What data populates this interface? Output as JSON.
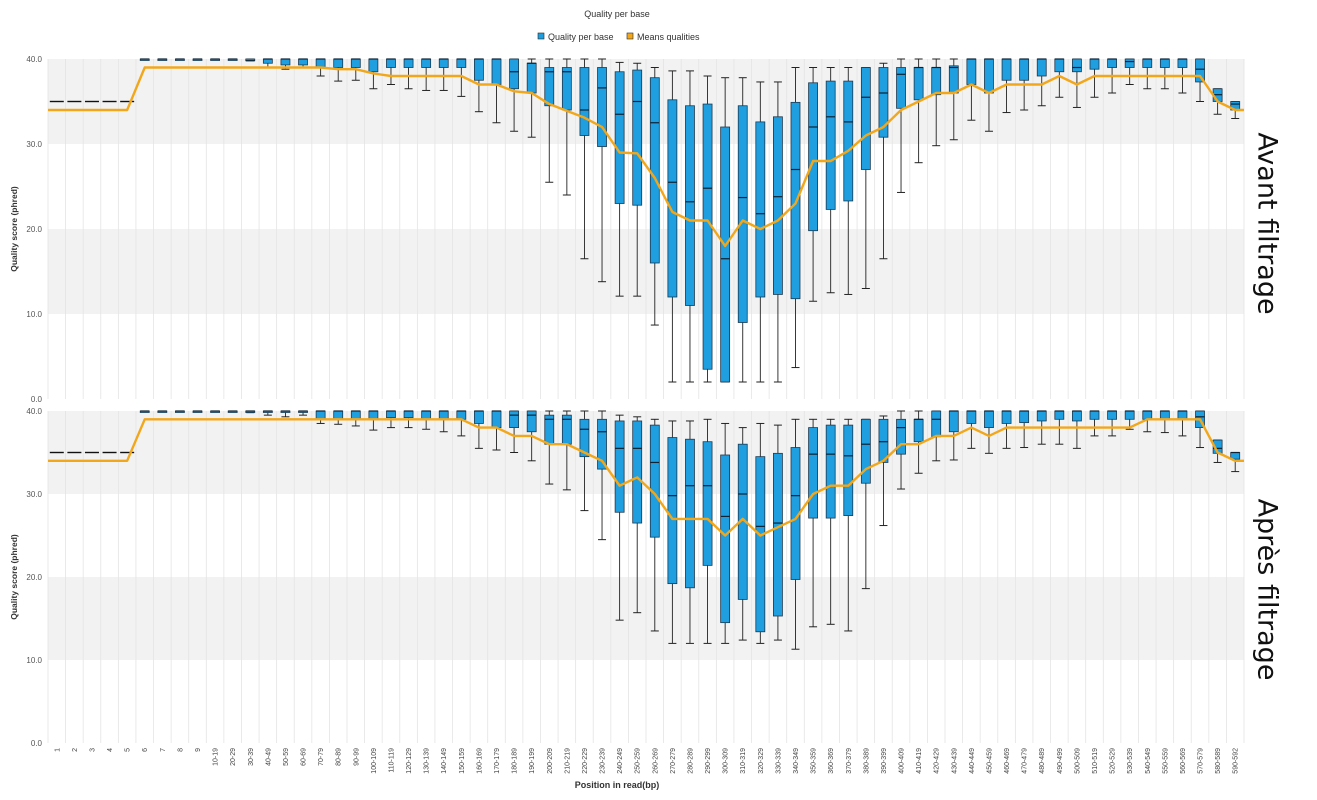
{
  "chart_data": {
    "type": "box",
    "title": "Quality per base",
    "legend": {
      "position": "top-center",
      "items": [
        {
          "label": "Quality per base",
          "color": "#1f9fe0",
          "kind": "box"
        },
        {
          "label": "Means qualities",
          "color": "#f2a71b",
          "kind": "line"
        }
      ]
    },
    "xlabel": "Position in read(bp)",
    "ylim": [
      0,
      40
    ],
    "yticks": [
      "0.0",
      "10.0",
      "20.0",
      "30.0",
      "40.0"
    ],
    "grid": true,
    "categories": [
      "1",
      "2",
      "3",
      "4",
      "5",
      "6",
      "7",
      "8",
      "9",
      "10-19",
      "20-29",
      "30-39",
      "40-49",
      "50-59",
      "60-69",
      "70-79",
      "80-89",
      "90-99",
      "100-109",
      "110-119",
      "120-129",
      "130-139",
      "140-149",
      "150-159",
      "160-169",
      "170-179",
      "180-189",
      "190-199",
      "200-209",
      "210-219",
      "220-229",
      "230-239",
      "240-249",
      "250-259",
      "260-269",
      "270-279",
      "280-289",
      "290-299",
      "300-309",
      "310-319",
      "320-329",
      "330-339",
      "340-349",
      "350-359",
      "360-369",
      "370-379",
      "380-389",
      "390-399",
      "400-409",
      "410-419",
      "420-429",
      "430-439",
      "440-449",
      "450-459",
      "460-469",
      "470-479",
      "480-489",
      "490-499",
      "500-509",
      "510-519",
      "520-529",
      "530-539",
      "540-549",
      "550-559",
      "560-569",
      "570-579",
      "580-589",
      "590-592"
    ],
    "panels": [
      {
        "side_label": "Avant filtrage",
        "ylabel": "Quality score (phred)",
        "boxes": [
          [
            35,
            35,
            35,
            35,
            35
          ],
          [
            35,
            35,
            35,
            35,
            35
          ],
          [
            35,
            35,
            35,
            35,
            35
          ],
          [
            35,
            35,
            35,
            35,
            35
          ],
          [
            35,
            35,
            35,
            35,
            35
          ],
          [
            40,
            40,
            40,
            40,
            40
          ],
          [
            40,
            40,
            40,
            40,
            40
          ],
          [
            40,
            40,
            40,
            40,
            40
          ],
          [
            40,
            40,
            40,
            40,
            40
          ],
          [
            40,
            40,
            40,
            40,
            40
          ],
          [
            40,
            40,
            40,
            40,
            40
          ],
          [
            39.8,
            39.8,
            39.8,
            40,
            40
          ],
          [
            39,
            39.5,
            40,
            40,
            40
          ],
          [
            38.8,
            39.3,
            40,
            40,
            40
          ],
          [
            39,
            39.3,
            40,
            40,
            40
          ],
          [
            38,
            39,
            40,
            40,
            40
          ],
          [
            37.4,
            39,
            40,
            40,
            40
          ],
          [
            37.5,
            39,
            40,
            40,
            40
          ],
          [
            36.5,
            38.5,
            40,
            40,
            40
          ],
          [
            37,
            39,
            40,
            40,
            40
          ],
          [
            36.5,
            39,
            40,
            40,
            40
          ],
          [
            36.3,
            39,
            40,
            40,
            40
          ],
          [
            36.3,
            39,
            40,
            40,
            40
          ],
          [
            35.6,
            39,
            40,
            40,
            40
          ],
          [
            33.8,
            37.5,
            40,
            40,
            40
          ],
          [
            32.5,
            37,
            40,
            40,
            40
          ],
          [
            31.5,
            36.5,
            38.5,
            40,
            40
          ],
          [
            30.8,
            36,
            39.5,
            39.5,
            40
          ],
          [
            25.5,
            34.5,
            38.5,
            39,
            40
          ],
          [
            24,
            34,
            38.5,
            39,
            40
          ],
          [
            16.5,
            31,
            34,
            39,
            40
          ],
          [
            13.8,
            29.7,
            36.6,
            39,
            40
          ],
          [
            12.1,
            23,
            33.5,
            38.5,
            39.6
          ],
          [
            12.1,
            22.8,
            35,
            38.7,
            39.5
          ],
          [
            8.7,
            16,
            32.5,
            37.8,
            39
          ],
          [
            2,
            12,
            25.5,
            35.2,
            38.6
          ],
          [
            2,
            11,
            23.2,
            34.5,
            38.6
          ],
          [
            2,
            3.5,
            24.8,
            34.7,
            38
          ],
          [
            2,
            2,
            16.5,
            32,
            37.8
          ],
          [
            2,
            9,
            23.7,
            34.5,
            37.8
          ],
          [
            2,
            12,
            21.8,
            32.6,
            37.3
          ],
          [
            2,
            12.3,
            23.8,
            33.2,
            37.3
          ],
          [
            3.7,
            11.8,
            27,
            34.9,
            39
          ],
          [
            11.5,
            19.8,
            32,
            37.2,
            39
          ],
          [
            12.5,
            22.3,
            33.2,
            37.4,
            39
          ],
          [
            12.3,
            23.3,
            32.6,
            37.4,
            39
          ],
          [
            13,
            27,
            35.5,
            39,
            39
          ],
          [
            16.5,
            30.8,
            36,
            39,
            39.5
          ],
          [
            24.3,
            34.2,
            38.2,
            39,
            40
          ],
          [
            27.8,
            35.2,
            39,
            39,
            40
          ],
          [
            29.8,
            35.8,
            39,
            39,
            40
          ],
          [
            30.5,
            36,
            39,
            39.2,
            40
          ],
          [
            32.8,
            37,
            40,
            40,
            40
          ],
          [
            31.5,
            36,
            40,
            40,
            40
          ],
          [
            33.7,
            37.5,
            40,
            40,
            40
          ],
          [
            34,
            37.5,
            40,
            40,
            40
          ],
          [
            34.5,
            38,
            40,
            40,
            40
          ],
          [
            35.5,
            38.5,
            40,
            40,
            40
          ],
          [
            34.3,
            38.5,
            39,
            40,
            40
          ],
          [
            35.5,
            38.8,
            40,
            40,
            40
          ],
          [
            36,
            39,
            40,
            40,
            40
          ],
          [
            37,
            39,
            39.7,
            40,
            40
          ],
          [
            36.5,
            39,
            40,
            40,
            40
          ],
          [
            36.5,
            39,
            40,
            40,
            40
          ],
          [
            36,
            39,
            40,
            40,
            40
          ],
          [
            35,
            37.3,
            38.8,
            40,
            40
          ],
          [
            33.5,
            35,
            35.8,
            36.5,
            36.5
          ],
          [
            33,
            34,
            34.7,
            35,
            35
          ]
        ],
        "means": [
          34,
          34,
          34,
          34,
          34,
          39,
          39,
          39,
          39,
          39,
          39,
          39,
          39,
          39,
          39,
          39,
          38.8,
          38.8,
          38.3,
          38,
          38,
          38,
          38,
          38,
          37,
          37,
          36.2,
          36,
          34.7,
          33.9,
          33.1,
          32,
          29,
          28.9,
          26,
          22,
          21,
          21,
          18,
          21,
          20,
          21,
          23,
          28,
          28,
          29.2,
          31,
          32,
          34,
          35,
          36,
          36,
          37,
          36,
          37,
          37,
          37,
          38,
          37,
          38,
          38,
          38,
          38,
          38,
          38,
          38,
          35,
          34
        ]
      },
      {
        "side_label": "Après filtrage",
        "ylabel": "Quality score (phred)",
        "boxes": [
          [
            35,
            35,
            35,
            35,
            35
          ],
          [
            35,
            35,
            35,
            35,
            35
          ],
          [
            35,
            35,
            35,
            35,
            35
          ],
          [
            35,
            35,
            35,
            35,
            35
          ],
          [
            35,
            35,
            35,
            35,
            35
          ],
          [
            40,
            40,
            40,
            40,
            40
          ],
          [
            40,
            40,
            40,
            40,
            40
          ],
          [
            40,
            40,
            40,
            40,
            40
          ],
          [
            40,
            40,
            40,
            40,
            40
          ],
          [
            40,
            40,
            40,
            40,
            40
          ],
          [
            40,
            40,
            40,
            40,
            40
          ],
          [
            39.8,
            40,
            40,
            40,
            40
          ],
          [
            39.5,
            40,
            40,
            40,
            40
          ],
          [
            39.3,
            40,
            40,
            40,
            40
          ],
          [
            39.5,
            40,
            40,
            40,
            40
          ],
          [
            38.5,
            39,
            40,
            40,
            40
          ],
          [
            38.4,
            39,
            40,
            40,
            40
          ],
          [
            38.2,
            39,
            40,
            40,
            40
          ],
          [
            37.7,
            39,
            40,
            40,
            40
          ],
          [
            38,
            39.2,
            40,
            40,
            40
          ],
          [
            38,
            39.2,
            40,
            40,
            40
          ],
          [
            37.8,
            39,
            40,
            40,
            40
          ],
          [
            37.5,
            39,
            40,
            40,
            40
          ],
          [
            37,
            39,
            40,
            40,
            40
          ],
          [
            35.5,
            38.5,
            40,
            40,
            40
          ],
          [
            35.3,
            38,
            40,
            40,
            40
          ],
          [
            35,
            38,
            39.5,
            40,
            40
          ],
          [
            34,
            37.5,
            39.5,
            40,
            40
          ],
          [
            31.2,
            36,
            39,
            39.5,
            40
          ],
          [
            30.5,
            36,
            39,
            39.5,
            40
          ],
          [
            28,
            34.5,
            37.8,
            39,
            40
          ],
          [
            24.5,
            33,
            37.5,
            39,
            40
          ],
          [
            14.8,
            27.8,
            35.5,
            38.8,
            39.5
          ],
          [
            15.7,
            26.5,
            35.5,
            38.8,
            39.3
          ],
          [
            13.5,
            24.8,
            33.8,
            38.3,
            39
          ],
          [
            12,
            19.2,
            29.8,
            36.8,
            38.8
          ],
          [
            12,
            18.7,
            31,
            36.6,
            38.8
          ],
          [
            12,
            21.4,
            31,
            36.3,
            39
          ],
          [
            12,
            14.5,
            27.3,
            34.7,
            38.5
          ],
          [
            12.4,
            17.3,
            30,
            36,
            38
          ],
          [
            12,
            13.4,
            26.1,
            34.5,
            38.5
          ],
          [
            12.4,
            15.3,
            26.5,
            34.9,
            38.3
          ],
          [
            11.3,
            19.7,
            29.8,
            35.6,
            39
          ],
          [
            14,
            27.1,
            34.8,
            38,
            39
          ],
          [
            14.3,
            27.1,
            34.8,
            38.3,
            39
          ],
          [
            13.5,
            27.4,
            34.6,
            38.3,
            39
          ],
          [
            18.6,
            31.3,
            36,
            39,
            39
          ],
          [
            26.2,
            33.8,
            36.3,
            39,
            39.4
          ],
          [
            30.6,
            34.8,
            38,
            39,
            40
          ],
          [
            32.5,
            36.3,
            39,
            39,
            40
          ],
          [
            34,
            36.9,
            39,
            40,
            40
          ],
          [
            34.1,
            37.5,
            40,
            40,
            40
          ],
          [
            35.5,
            38.5,
            40,
            40,
            40
          ],
          [
            34.9,
            38,
            40,
            40,
            40
          ],
          [
            35.5,
            38.5,
            40,
            40,
            40
          ],
          [
            35.6,
            38.6,
            40,
            40,
            40
          ],
          [
            36,
            38.8,
            40,
            40,
            40
          ],
          [
            36,
            39,
            40,
            40,
            40
          ],
          [
            35.5,
            38.8,
            40,
            40,
            40
          ],
          [
            37,
            39,
            40,
            40,
            40
          ],
          [
            37,
            39,
            40,
            40,
            40
          ],
          [
            37.8,
            39,
            40,
            40,
            40
          ],
          [
            37.5,
            39,
            40,
            40,
            40
          ],
          [
            37.4,
            39,
            40,
            40,
            40
          ],
          [
            37,
            39,
            40,
            40,
            40
          ],
          [
            35.6,
            38,
            39.3,
            40,
            40
          ],
          [
            33.8,
            34.9,
            35.5,
            36.5,
            36.5
          ],
          [
            32.7,
            34.2,
            35,
            35,
            35
          ]
        ],
        "means": [
          34,
          34,
          34,
          34,
          34,
          39,
          39,
          39,
          39,
          39,
          39,
          39,
          39,
          39,
          39,
          39,
          39,
          39,
          39,
          39,
          39,
          39,
          39,
          39,
          38,
          38,
          37,
          37,
          36,
          36,
          35,
          34,
          31,
          32,
          30,
          27,
          27,
          27,
          25,
          27,
          25,
          26,
          27,
          30,
          31,
          31,
          33,
          34,
          36,
          36,
          37,
          37,
          38,
          37,
          38,
          38,
          38,
          38,
          38,
          38,
          38,
          38,
          39,
          39,
          39,
          39,
          35,
          34
        ]
      }
    ]
  }
}
